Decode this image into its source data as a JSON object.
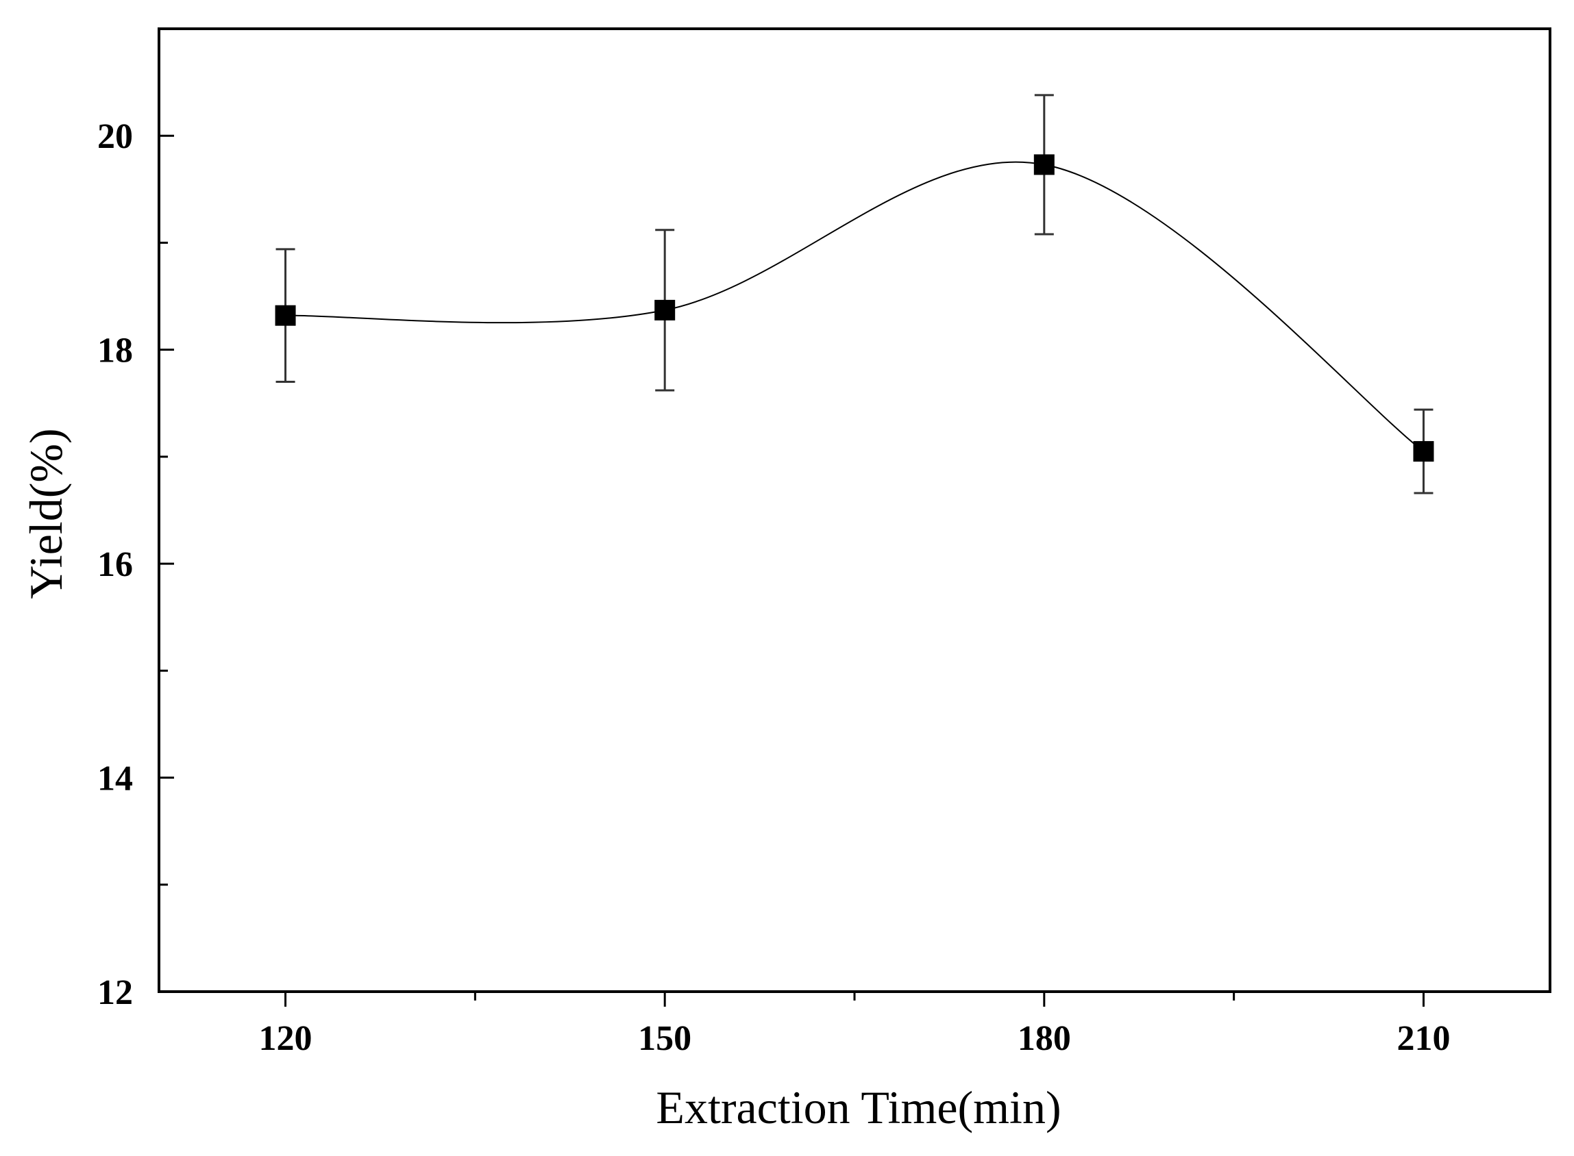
{
  "chart_data": {
    "type": "line",
    "title": "",
    "xlabel": "Extraction Time(min)",
    "ylabel": "Yield(%)",
    "x": [
      120,
      150,
      180,
      210
    ],
    "series": [
      {
        "name": "Yield",
        "values": [
          18.32,
          18.37,
          19.73,
          17.05
        ],
        "error": [
          0.62,
          0.75,
          0.65,
          0.39
        ]
      }
    ],
    "xlim": [
      110,
      220
    ],
    "ylim": [
      12,
      21
    ],
    "xticks": [
      120,
      150,
      180,
      210
    ],
    "xtick_labels": [
      "120",
      "150",
      "180",
      "210"
    ],
    "yticks": [
      12,
      14,
      16,
      18,
      20
    ],
    "ytick_labels": [
      "12",
      "14",
      "16",
      "18",
      "20"
    ],
    "grid": false,
    "legend": "none",
    "marker": "square",
    "curve": "smooth",
    "colors": {
      "line": "#000000",
      "marker": "#000000",
      "axis": "#000000",
      "errorbar": "#333333"
    }
  }
}
